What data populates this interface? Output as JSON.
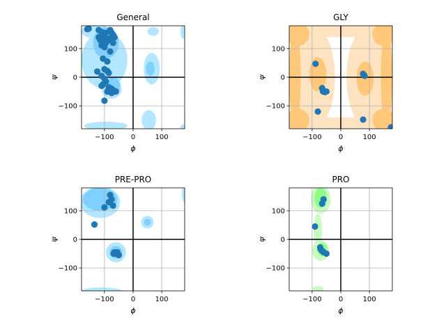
{
  "chart_data": [
    {
      "type": "scatter",
      "title": "General",
      "xlabel": "ϕ",
      "ylabel": "ψ",
      "xlim": [
        -180,
        180
      ],
      "ylim": [
        -180,
        180
      ],
      "xticks": [
        -100,
        0,
        100
      ],
      "yticks": [
        -100,
        0,
        100
      ],
      "grid": true,
      "region_colors": [
        "#b3e6ff",
        "#80d0ff"
      ],
      "point_color": "#1f77b4",
      "regions_allowed": [
        {
          "cx": -100,
          "cy": 60,
          "rx": 80,
          "ry": 100
        },
        {
          "cx": -130,
          "cy": 160,
          "rx": 50,
          "ry": 25
        },
        {
          "cx": -75,
          "cy": -40,
          "rx": 35,
          "ry": 35
        },
        {
          "cx": 65,
          "cy": 30,
          "rx": 28,
          "ry": 55
        },
        {
          "cx": 55,
          "cy": -150,
          "rx": 25,
          "ry": 35
        },
        {
          "cx": -95,
          "cy": -170,
          "rx": 75,
          "ry": 15
        },
        {
          "cx": 175,
          "cy": 160,
          "rx": 10,
          "ry": 25
        },
        {
          "cx": 175,
          "cy": -175,
          "rx": 10,
          "ry": 10
        },
        {
          "cx": 70,
          "cy": 160,
          "rx": 20,
          "ry": 15
        }
      ],
      "regions_core": [
        {
          "cx": -95,
          "cy": 120,
          "rx": 45,
          "ry": 55
        },
        {
          "cx": -70,
          "cy": -30,
          "rx": 25,
          "ry": 30
        },
        {
          "cx": 60,
          "cy": 30,
          "rx": 15,
          "ry": 25
        }
      ],
      "points": [
        [
          -160,
          168
        ],
        [
          -155,
          170
        ],
        [
          -120,
          165
        ],
        [
          -110,
          158
        ],
        [
          -105,
          148
        ],
        [
          -100,
          140
        ],
        [
          -95,
          155
        ],
        [
          -80,
          165
        ],
        [
          -75,
          155
        ],
        [
          -70,
          148
        ],
        [
          -65,
          140
        ],
        [
          -120,
          140
        ],
        [
          -115,
          130
        ],
        [
          -105,
          125
        ],
        [
          -95,
          120
        ],
        [
          -90,
          128
        ],
        [
          -85,
          135
        ],
        [
          -75,
          130
        ],
        [
          -70,
          120
        ],
        [
          -110,
          112
        ],
        [
          -100,
          105
        ],
        [
          -80,
          90
        ],
        [
          -105,
          65
        ],
        [
          -90,
          55
        ],
        [
          -125,
          20
        ],
        [
          -100,
          28
        ],
        [
          -90,
          22
        ],
        [
          -85,
          15
        ],
        [
          -110,
          5
        ],
        [
          -100,
          -5
        ],
        [
          -95,
          -15
        ],
        [
          -105,
          -25
        ],
        [
          -110,
          -30
        ],
        [
          -85,
          -35
        ],
        [
          -75,
          -40
        ],
        [
          -70,
          -45
        ],
        [
          -65,
          -48
        ],
        [
          -75,
          -55
        ],
        [
          -60,
          -50
        ],
        [
          -90,
          -50
        ],
        [
          -100,
          -82
        ]
      ]
    },
    {
      "type": "scatter",
      "title": "GLY",
      "xlabel": "ϕ",
      "ylabel": "ψ",
      "xlim": [
        -180,
        180
      ],
      "ylim": [
        -180,
        180
      ],
      "xticks": [
        -100,
        0,
        100
      ],
      "yticks": [
        -100,
        0,
        100
      ],
      "grid": true,
      "region_colors": [
        "#fde3c0",
        "#ffc77a"
      ],
      "point_color": "#1f77b4",
      "regions_allowed": [
        {
          "cx": -100,
          "cy": 0,
          "rx": 80,
          "ry": 180
        },
        {
          "cx": 100,
          "cy": 0,
          "rx": 80,
          "ry": 180
        },
        {
          "cx": 0,
          "cy": 165,
          "rx": 180,
          "ry": 25
        },
        {
          "cx": 0,
          "cy": -165,
          "rx": 180,
          "ry": 25
        }
      ],
      "regions_core": [
        {
          "cx": -150,
          "cy": 150,
          "rx": 40,
          "ry": 40
        },
        {
          "cx": -150,
          "cy": -150,
          "rx": 40,
          "ry": 40
        },
        {
          "cx": 150,
          "cy": 150,
          "rx": 40,
          "ry": 40
        },
        {
          "cx": 150,
          "cy": -150,
          "rx": 40,
          "ry": 40
        },
        {
          "cx": -80,
          "cy": 10,
          "rx": 30,
          "ry": 60
        },
        {
          "cx": 85,
          "cy": -5,
          "rx": 30,
          "ry": 60
        },
        {
          "cx": -160,
          "cy": 0,
          "rx": 20,
          "ry": 180
        },
        {
          "cx": 160,
          "cy": 0,
          "rx": 20,
          "ry": 180
        }
      ],
      "points": [
        [
          -88,
          47
        ],
        [
          -65,
          -38
        ],
        [
          -62,
          -50
        ],
        [
          -55,
          -52
        ],
        [
          -50,
          -50
        ],
        [
          -80,
          -120
        ],
        [
          78,
          12
        ],
        [
          83,
          5
        ],
        [
          78,
          -148
        ],
        [
          175,
          -175
        ]
      ]
    },
    {
      "type": "scatter",
      "title": "PRE-PRO",
      "xlabel": "ϕ",
      "ylabel": "ψ",
      "xlim": [
        -180,
        180
      ],
      "ylim": [
        -180,
        180
      ],
      "xticks": [
        -100,
        0,
        100
      ],
      "yticks": [
        -100,
        0,
        100
      ],
      "grid": true,
      "region_colors": [
        "#b3e6ff",
        "#80d0ff"
      ],
      "point_color": "#1f77b4",
      "regions_allowed": [
        {
          "cx": -115,
          "cy": 130,
          "rx": 70,
          "ry": 55
        },
        {
          "cx": -60,
          "cy": -45,
          "rx": 35,
          "ry": 35
        },
        {
          "cx": 50,
          "cy": 60,
          "rx": 22,
          "ry": 22
        },
        {
          "cx": -110,
          "cy": -180,
          "rx": 70,
          "ry": 12
        },
        {
          "cx": 180,
          "cy": 160,
          "rx": 10,
          "ry": 30
        }
      ],
      "regions_core": [
        {
          "cx": -115,
          "cy": 140,
          "rx": 60,
          "ry": 40
        },
        {
          "cx": -60,
          "cy": -45,
          "rx": 22,
          "ry": 22
        },
        {
          "cx": 50,
          "cy": 60,
          "rx": 12,
          "ry": 12
        }
      ],
      "points": [
        [
          -135,
          52
        ],
        [
          -100,
          112
        ],
        [
          -85,
          130
        ],
        [
          -80,
          155
        ],
        [
          -75,
          140
        ],
        [
          -70,
          118
        ],
        [
          -65,
          -45
        ],
        [
          -60,
          -50
        ],
        [
          -55,
          -45
        ],
        [
          -50,
          -55
        ],
        [
          -68,
          -50
        ]
      ]
    },
    {
      "type": "scatter",
      "title": "PRO",
      "xlabel": "ϕ",
      "ylabel": "ψ",
      "xlim": [
        -180,
        180
      ],
      "ylim": [
        -180,
        180
      ],
      "xticks": [
        -100,
        0,
        100
      ],
      "yticks": [
        -100,
        0,
        100
      ],
      "grid": true,
      "region_colors": [
        "#c8fcc0",
        "#8efc88"
      ],
      "point_color": "#1f77b4",
      "regions_allowed": [
        {
          "cx": -70,
          "cy": 140,
          "rx": 35,
          "ry": 50
        },
        {
          "cx": -80,
          "cy": 30,
          "rx": 15,
          "ry": 60
        },
        {
          "cx": -70,
          "cy": -40,
          "rx": 30,
          "ry": 35
        },
        {
          "cx": -80,
          "cy": -175,
          "rx": 20,
          "ry": 12
        }
      ],
      "regions_core": [
        {
          "cx": -70,
          "cy": 145,
          "rx": 22,
          "ry": 35
        },
        {
          "cx": -65,
          "cy": -35,
          "rx": 18,
          "ry": 22
        }
      ],
      "points": [
        [
          -65,
          125
        ],
        [
          -60,
          140
        ],
        [
          -90,
          45
        ],
        [
          -70,
          -35
        ],
        [
          -65,
          -40
        ],
        [
          -60,
          -45
        ],
        [
          -50,
          -50
        ],
        [
          -72,
          -28
        ]
      ]
    }
  ]
}
